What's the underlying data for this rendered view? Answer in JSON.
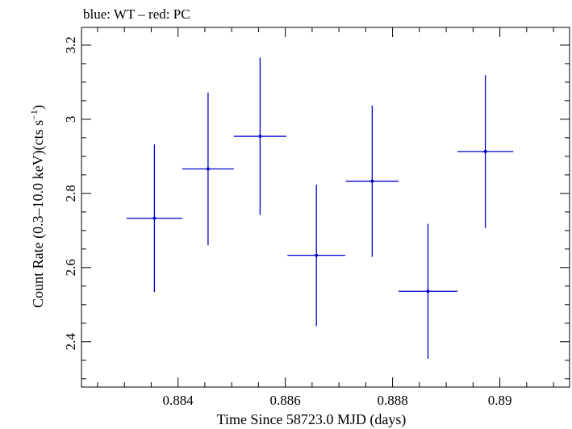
{
  "chart_data": {
    "type": "scatter",
    "title": "blue: WT – red: PC",
    "xlabel": "Time Since 58723.0 MJD (days)",
    "ylabel_main": "Count Rate (0.3–10.0 keV)(cts s",
    "ylabel_sup": "−1",
    "ylabel_end": ")",
    "xlim": [
      0.8822,
      0.8913
    ],
    "ylim": [
      2.2777,
      3.2477
    ],
    "grid": false,
    "xticks": [
      0.884,
      0.886,
      0.888,
      0.89
    ],
    "xtick_labels": [
      "0.884",
      "0.886",
      "0.888",
      "0.89"
    ],
    "yticks": [
      2.4,
      2.6,
      2.8,
      3.0,
      3.2
    ],
    "ytick_labels": [
      "2.4",
      "2.6",
      "2.8",
      "3",
      "3.2"
    ],
    "series": [
      {
        "color": "#0000cc",
        "points": [
          {
            "x": 0.88356,
            "y": 2.733,
            "xerr": 0.00052,
            "yerr": 0.199
          },
          {
            "x": 0.88456,
            "y": 2.866,
            "xerr": 0.00048,
            "yerr": 0.206
          },
          {
            "x": 0.88553,
            "y": 2.954,
            "xerr": 0.00049,
            "yerr": 0.212
          },
          {
            "x": 0.88658,
            "y": 2.633,
            "xerr": 0.00054,
            "yerr": 0.191
          },
          {
            "x": 0.88762,
            "y": 2.833,
            "xerr": 0.00049,
            "yerr": 0.204
          },
          {
            "x": 0.88866,
            "y": 2.536,
            "xerr": 0.00055,
            "yerr": 0.182
          },
          {
            "x": 0.88973,
            "y": 2.913,
            "xerr": 0.00052,
            "yerr": 0.206
          }
        ]
      }
    ]
  }
}
